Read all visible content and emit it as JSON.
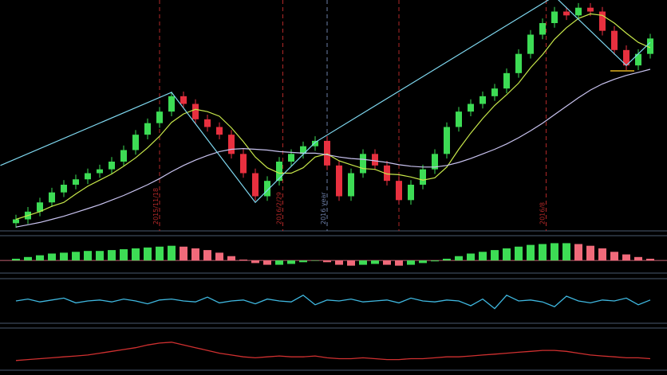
{
  "chart_data": [
    {
      "type": "candlestick",
      "ylim": [
        -5,
        295
      ],
      "up_color": "#3ddc55",
      "down_color": "#e8303f",
      "open": [
        5,
        10,
        20,
        32,
        45,
        55,
        62,
        70,
        75,
        85,
        100,
        120,
        135,
        150,
        170,
        160,
        140,
        130,
        120,
        95,
        70,
        40,
        60,
        85,
        95,
        105,
        112,
        80,
        40,
        70,
        95,
        80,
        60,
        35,
        55,
        75,
        95,
        130,
        150,
        160,
        170,
        180,
        200,
        225,
        250,
        265,
        280,
        275,
        285,
        280,
        255,
        230,
        210,
        225
      ],
      "high": [
        16,
        26,
        38,
        51,
        61,
        68,
        76,
        81,
        91,
        106,
        126,
        141,
        156,
        176,
        176,
        166,
        146,
        136,
        126,
        101,
        76,
        66,
        91,
        101,
        111,
        118,
        118,
        86,
        76,
        101,
        101,
        86,
        66,
        61,
        81,
        101,
        136,
        156,
        166,
        176,
        186,
        206,
        231,
        256,
        271,
        286,
        286,
        291,
        291,
        286,
        261,
        236,
        231,
        251
      ],
      "low": [
        -1,
        4,
        14,
        26,
        39,
        49,
        56,
        64,
        69,
        79,
        94,
        114,
        129,
        144,
        154,
        134,
        124,
        114,
        89,
        64,
        34,
        34,
        54,
        79,
        89,
        99,
        74,
        34,
        34,
        64,
        74,
        54,
        29,
        29,
        49,
        69,
        89,
        124,
        144,
        154,
        164,
        174,
        194,
        219,
        244,
        259,
        269,
        269,
        274,
        249,
        224,
        204,
        204,
        219
      ],
      "close": [
        10,
        20,
        32,
        45,
        55,
        62,
        70,
        75,
        85,
        100,
        120,
        135,
        150,
        170,
        160,
        140,
        130,
        120,
        95,
        70,
        40,
        60,
        85,
        95,
        105,
        112,
        80,
        40,
        70,
        95,
        80,
        60,
        35,
        55,
        75,
        95,
        130,
        150,
        160,
        170,
        180,
        200,
        225,
        250,
        265,
        280,
        275,
        285,
        280,
        255,
        230,
        210,
        225,
        245
      ],
      "overlays": [
        {
          "color": "#c8e84a",
          "values": [
            10,
            15,
            20,
            27,
            32,
            43,
            53,
            61,
            69,
            79,
            90,
            103,
            118,
            136,
            147,
            153,
            150,
            144,
            129,
            111,
            91,
            77,
            70,
            70,
            77,
            91,
            95,
            86,
            81,
            76,
            75,
            69,
            68,
            65,
            61,
            64,
            78,
            101,
            122,
            141,
            158,
            172,
            187,
            207,
            224,
            244,
            259,
            271,
            277,
            275,
            265,
            252,
            240,
            233
          ]
        },
        {
          "color": "#c9c3f0",
          "values": [
            0,
            3,
            6,
            10,
            14,
            19,
            24,
            29,
            35,
            41,
            48,
            55,
            63,
            72,
            80,
            87,
            93,
            98,
            101,
            102,
            101,
            100,
            98,
            97,
            96,
            96,
            94,
            91,
            89,
            88,
            86,
            84,
            81,
            79,
            78,
            78,
            80,
            84,
            89,
            95,
            101,
            108,
            116,
            125,
            135,
            146,
            157,
            168,
            178,
            186,
            192,
            197,
            201,
            205
          ]
        }
      ],
      "trendline": {
        "color": "#7fd8f0",
        "x": [
          -1.3,
          13,
          20,
          25,
          45,
          51,
          53
        ],
        "values": [
          80,
          175,
          32,
          110,
          300,
          210,
          240
        ]
      },
      "markers": [
        {
          "x": 12,
          "label": "2015/11/18",
          "color": "#b02828"
        },
        {
          "x": 22.3,
          "label": "2016/2/29",
          "color": "#b02828"
        },
        {
          "x": 26,
          "label": "2016 year",
          "color": "#6d7fa8"
        },
        {
          "x": 32,
          "color": "#b02828"
        },
        {
          "x": 44.3,
          "label": "2016/8",
          "color": "#b02828"
        }
      ]
    },
    {
      "type": "bar",
      "ylim": [
        -10,
        25
      ],
      "up_color": "#3ddc55",
      "down_color": "#f06a7a",
      "values": [
        2,
        4,
        6,
        8,
        9,
        10,
        11,
        11,
        12,
        13,
        14,
        15,
        16,
        17,
        16,
        14,
        12,
        9,
        5,
        1,
        -3,
        -5,
        -5,
        -4,
        -2,
        0,
        -2,
        -5,
        -6,
        -5,
        -4,
        -5,
        -6,
        -5,
        -3,
        -1,
        2,
        5,
        8,
        10,
        12,
        14,
        16,
        18,
        19,
        20,
        20,
        19,
        17,
        14,
        10,
        7,
        4,
        2
      ]
    },
    {
      "type": "line",
      "ylim": [
        -20,
        20
      ],
      "color": "#3fb8e0",
      "values": [
        0,
        2,
        -1,
        1,
        3,
        -2,
        0,
        1,
        -1,
        2,
        0,
        -3,
        1,
        2,
        0,
        -1,
        4,
        -2,
        0,
        1,
        -3,
        2,
        0,
        -1,
        6,
        -4,
        1,
        0,
        2,
        -1,
        0,
        1,
        -2,
        3,
        0,
        -1,
        1,
        0,
        -5,
        2,
        -8,
        6,
        0,
        1,
        -1,
        -6,
        5,
        0,
        -2,
        1,
        0,
        3,
        -4,
        1
      ]
    },
    {
      "type": "line",
      "ylim": [
        0,
        40
      ],
      "color": "#d03030",
      "values": [
        8,
        9,
        10,
        11,
        12,
        13,
        14,
        16,
        18,
        20,
        22,
        25,
        27,
        28,
        25,
        22,
        19,
        16,
        14,
        12,
        11,
        12,
        13,
        12,
        12,
        13,
        11,
        10,
        10,
        11,
        10,
        9,
        9,
        10,
        10,
        11,
        12,
        12,
        13,
        14,
        15,
        16,
        17,
        18,
        19,
        19,
        18,
        16,
        14,
        13,
        12,
        11,
        11,
        10
      ]
    }
  ]
}
